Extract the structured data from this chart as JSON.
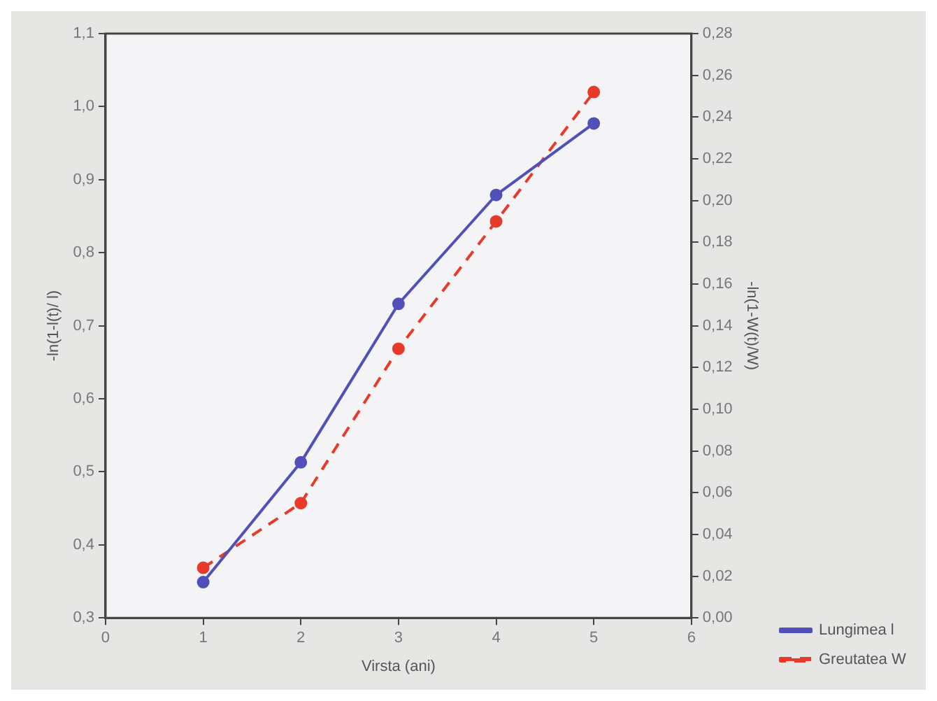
{
  "chart_data": {
    "type": "line",
    "xlabel": "Virsta (ani)",
    "ylabel": "-ln(1-l(t)/ l)",
    "y2label": "-ln(1-W(t)/W)",
    "x": [
      1,
      2,
      3,
      4,
      5
    ],
    "series": [
      {
        "name": "Lungimea l",
        "color": "#5050b8",
        "values": [
          0.349,
          0.513,
          0.73,
          0.879,
          0.977
        ],
        "line_style": "solid"
      },
      {
        "name": "Greutatea W",
        "color": "#e83a2a",
        "values": [
          0.024,
          0.055,
          0.129,
          0.19,
          0.252
        ],
        "axis": "y2",
        "line_style": "dashed"
      }
    ],
    "xlim": [
      0,
      6
    ],
    "xticks": [
      0,
      1,
      2,
      3,
      4,
      5,
      6
    ],
    "ylim": [
      0.3,
      1.1
    ],
    "yticks": [
      {
        "value": 0.3,
        "label": "0,3"
      },
      {
        "value": 0.4,
        "label": "0,4"
      },
      {
        "value": 0.5,
        "label": "0,5"
      },
      {
        "value": 0.6,
        "label": "0,6"
      },
      {
        "value": 0.7,
        "label": "0,7"
      },
      {
        "value": 0.8,
        "label": "0,8"
      },
      {
        "value": 0.9,
        "label": "0,9"
      },
      {
        "value": 1.0,
        "label": "1,0"
      },
      {
        "value": 1.1,
        "label": "1,1"
      }
    ],
    "y2lim": [
      0,
      0.28
    ],
    "y2ticks": [
      {
        "value": 0,
        "label": "0,00"
      },
      {
        "value": 0.02,
        "label": "0,02"
      },
      {
        "value": 0.04,
        "label": "0,04"
      },
      {
        "value": 0.06,
        "label": "0,06"
      },
      {
        "value": 0.08,
        "label": "0,08"
      },
      {
        "value": 0.1,
        "label": "0,10"
      },
      {
        "value": 0.12,
        "label": "0,12"
      },
      {
        "value": 0.14,
        "label": "0,14"
      },
      {
        "value": 0.16,
        "label": "0,16"
      },
      {
        "value": 0.18,
        "label": "0,18"
      },
      {
        "value": 0.2,
        "label": "0,20"
      },
      {
        "value": 0.22,
        "label": "0,22"
      },
      {
        "value": 0.24,
        "label": "0,24"
      },
      {
        "value": 0.26,
        "label": "0,26"
      },
      {
        "value": 0.28,
        "label": "0,28"
      }
    ],
    "grid": false,
    "legend": "bottom right",
    "marker": "circle"
  }
}
